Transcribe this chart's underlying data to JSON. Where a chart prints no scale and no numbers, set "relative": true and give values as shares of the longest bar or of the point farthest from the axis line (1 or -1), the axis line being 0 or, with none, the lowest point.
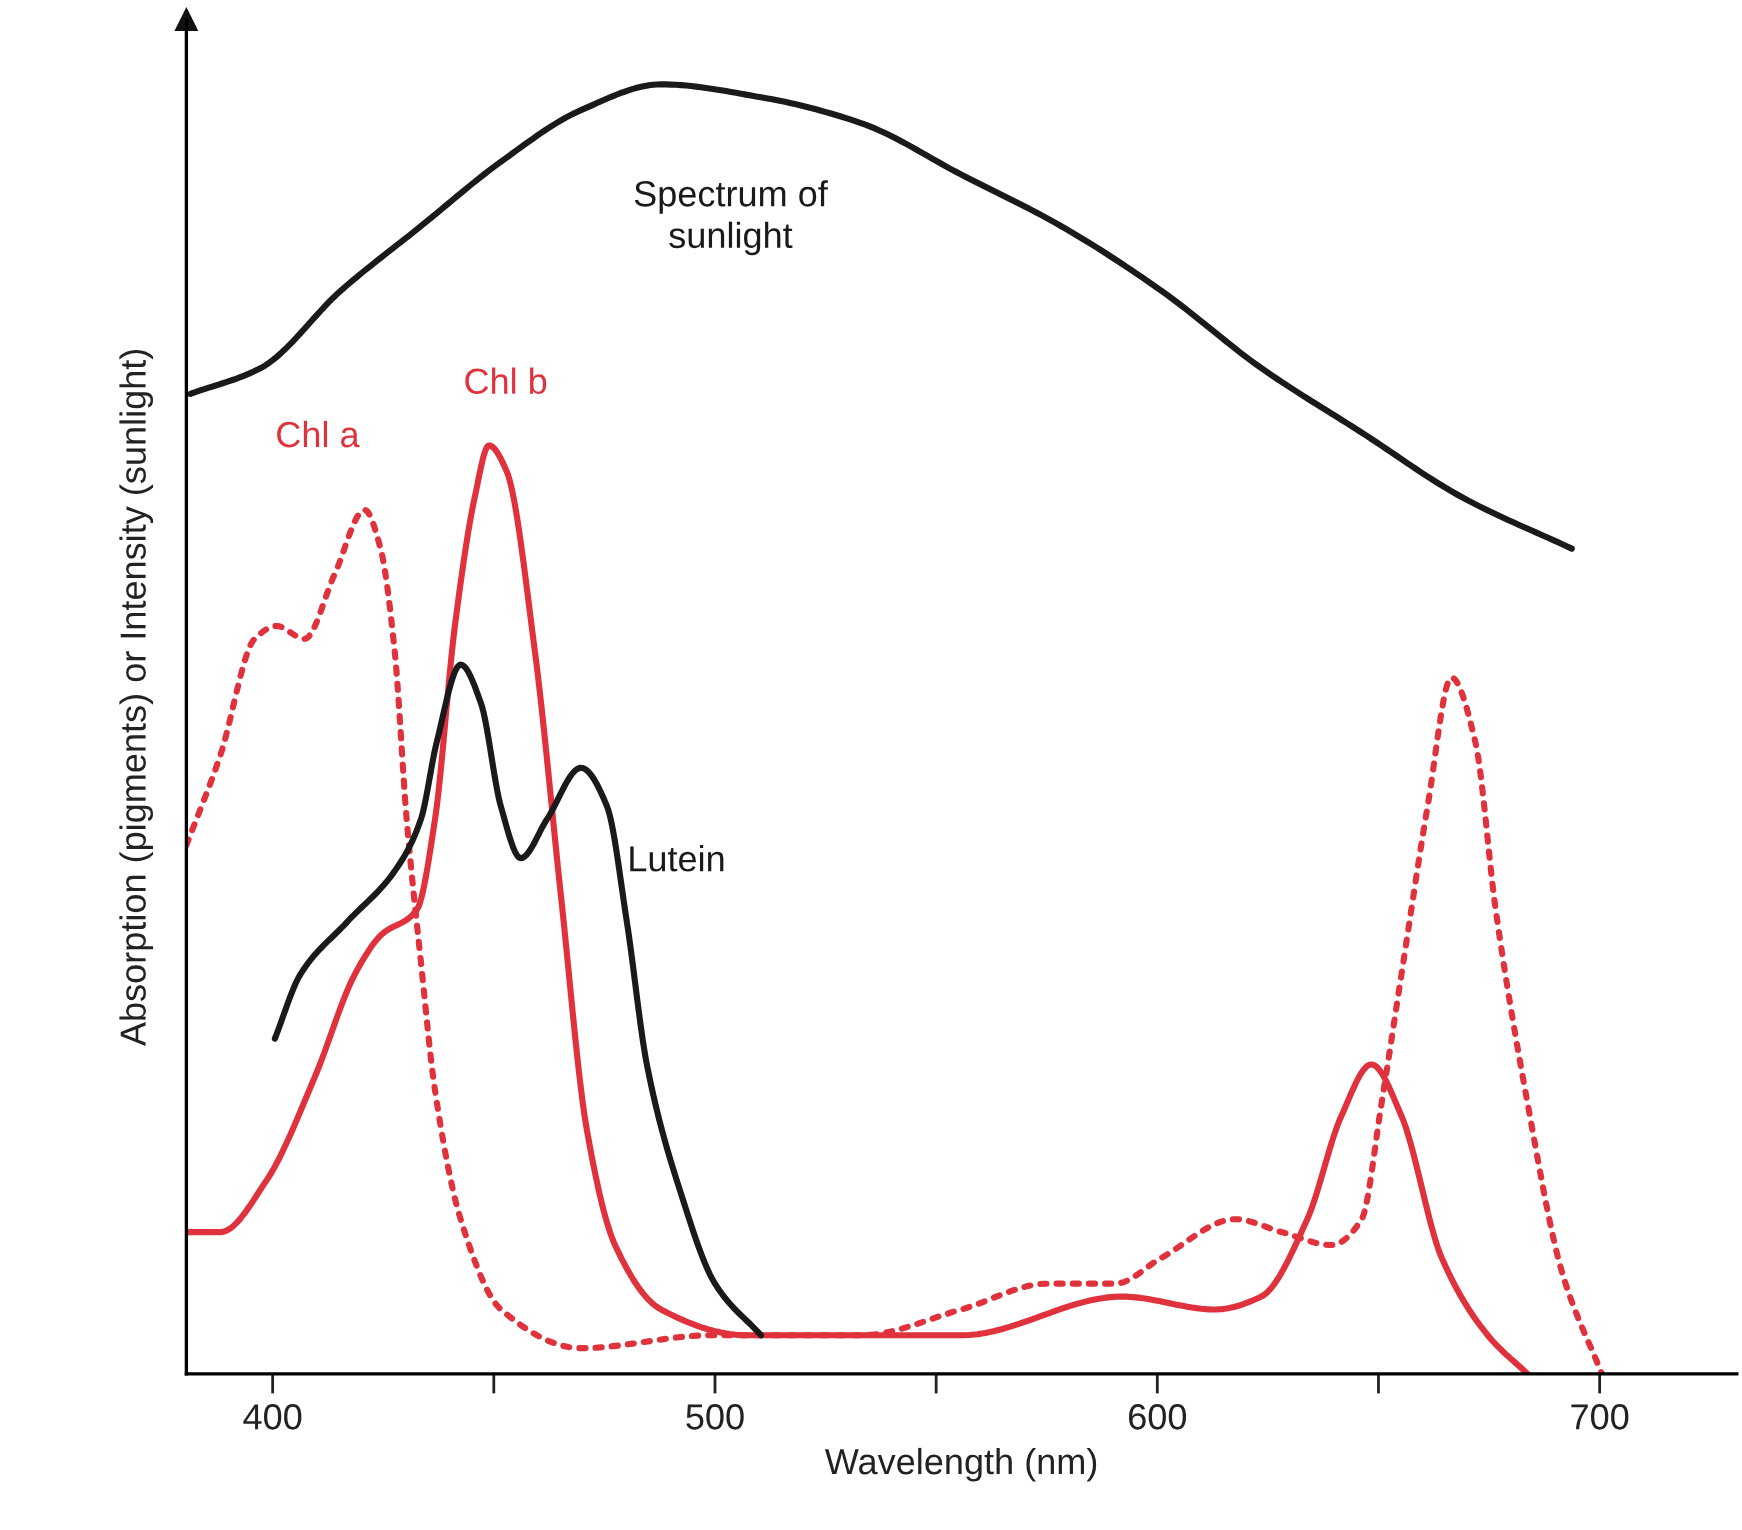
{
  "chart_data": {
    "type": "line",
    "relative": true,
    "xlabel": "Wavelength (nm)",
    "ylabel": "Absorption (pigments) or Intensity (sunlight)",
    "xlim": [
      380.5,
      731
    ],
    "xticks": [
      400,
      {
        "value": 450,
        "label": null
      },
      500,
      {
        "value": 550,
        "label": null
      },
      600,
      {
        "value": 650,
        "label": null
      },
      700
    ],
    "grid": false,
    "legend": false,
    "marker": "none",
    "series": [
      {
        "name": "Spectrum of\nsunlight",
        "color": "#1a1a1a",
        "line_style": "solid",
        "x": [
          381.4,
          397.3,
          415.4,
          433.5,
          451.6,
          469.7,
          487.8,
          510.4,
          533,
          555.7,
          578.3,
          600.9,
          623.5,
          646.2,
          668.8,
          693.7
        ],
        "values": [
          0.76,
          0.78,
          0.84,
          0.89,
          0.94,
          0.98,
          1.0,
          0.99,
          0.97,
          0.93,
          0.89,
          0.84,
          0.78,
          0.73,
          0.68,
          0.64
        ]
      },
      {
        "name": "Chl a",
        "color": "#e0323c",
        "line_style": "dotted",
        "x": [
          380.5,
          388.2,
          395.9,
          400.9,
          407.2,
          414,
          420.8,
          424.4,
          427.6,
          430.3,
          433.5,
          436.7,
          442.5,
          451.6,
          469.7,
          499.1,
          533,
          555.7,
          575.1,
          590.5,
          600.9,
          617.6,
          628.1,
          639.4,
          646.2,
          650.7,
          655.2,
          661.1,
          666.5,
          671.9,
          676.5,
          683.7,
          691.4,
          700.5
        ],
        "values": [
          0.41,
          0.48,
          0.57,
          0.58,
          0.57,
          0.62,
          0.67,
          0.64,
          0.56,
          0.43,
          0.32,
          0.22,
          0.12,
          0.05,
          0.02,
          0.03,
          0.03,
          0.05,
          0.07,
          0.07,
          0.09,
          0.12,
          0.11,
          0.1,
          0.12,
          0.21,
          0.31,
          0.44,
          0.54,
          0.49,
          0.36,
          0.21,
          0.08,
          0.0
        ]
      },
      {
        "name": "Chl b",
        "color": "#e0323c",
        "line_style": "solid",
        "x": [
          380.5,
          388.2,
          398.6,
          409.5,
          418.6,
          424.4,
          432.6,
          436.7,
          441.2,
          445.7,
          448.9,
          452.9,
          459.3,
          465.2,
          471,
          477.4,
          487.8,
          507.2,
          555.7,
          591.9,
          613.1,
          623.5,
          633.9,
          641.6,
          648.4,
          655.2,
          664.3,
          674.7,
          683.7
        ],
        "values": [
          0.11,
          0.11,
          0.15,
          0.23,
          0.31,
          0.34,
          0.36,
          0.43,
          0.58,
          0.68,
          0.72,
          0.7,
          0.56,
          0.37,
          0.19,
          0.1,
          0.05,
          0.03,
          0.03,
          0.06,
          0.05,
          0.06,
          0.12,
          0.2,
          0.24,
          0.2,
          0.09,
          0.03,
          0.0
        ]
      },
      {
        "name": "Lutein",
        "color": "#1a1a1a",
        "line_style": "solid",
        "x": [
          400.5,
          406.3,
          416.7,
          427.6,
          433.5,
          437.1,
          442.5,
          447.1,
          451.6,
          456.1,
          462,
          469.7,
          475.6,
          480.1,
          484.6,
          492.3,
          500,
          510.4
        ],
        "values": [
          0.26,
          0.31,
          0.35,
          0.39,
          0.43,
          0.49,
          0.55,
          0.52,
          0.44,
          0.4,
          0.43,
          0.47,
          0.44,
          0.35,
          0.24,
          0.14,
          0.07,
          0.03
        ]
      }
    ]
  }
}
